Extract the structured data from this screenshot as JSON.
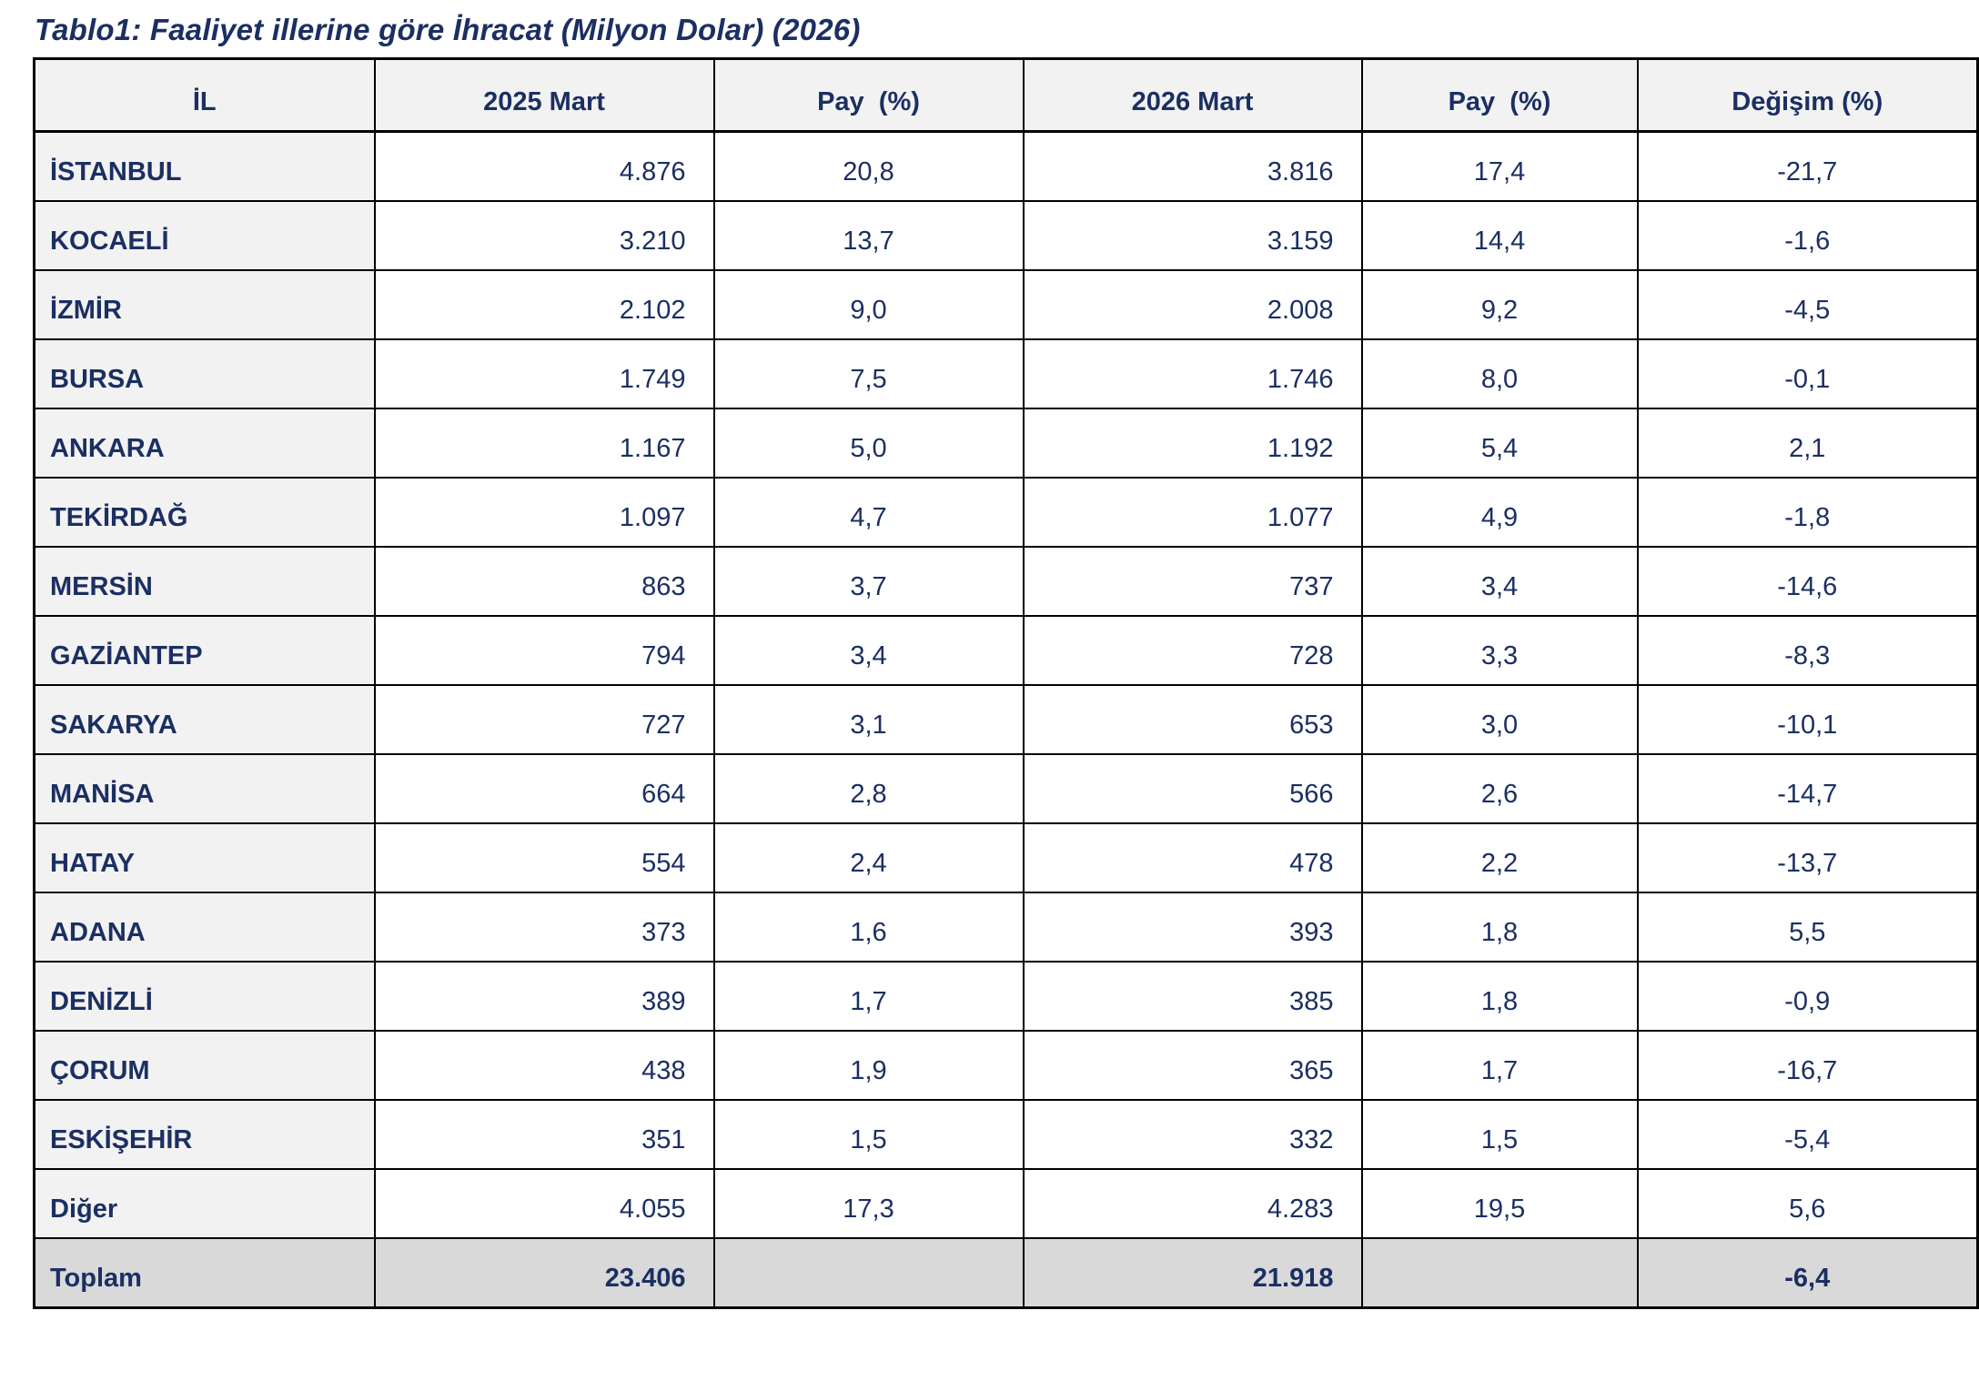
{
  "title": "Tablo1: Faaliyet illerine göre İhracat (Milyon Dolar) (2026)",
  "colors": {
    "text_navy": "#1b2f62",
    "header_bg": "#f2f2f2",
    "first_col_bg": "#f2f2f2",
    "total_row_bg": "#d9d9d9",
    "border": "#000000"
  },
  "table": {
    "columns": [
      "İL",
      "2025 Mart",
      "Pay  (%)",
      "2026 Mart",
      "Pay  (%)",
      "Değişim (%)"
    ],
    "rows": [
      {
        "il": "İSTANBUL",
        "v2025": "4.876",
        "pay2025": "20,8",
        "v2026": "3.816",
        "pay2026": "17,4",
        "change": "-21,7"
      },
      {
        "il": "KOCAELİ",
        "v2025": "3.210",
        "pay2025": "13,7",
        "v2026": "3.159",
        "pay2026": "14,4",
        "change": "-1,6"
      },
      {
        "il": "İZMİR",
        "v2025": "2.102",
        "pay2025": "9,0",
        "v2026": "2.008",
        "pay2026": "9,2",
        "change": "-4,5"
      },
      {
        "il": "BURSA",
        "v2025": "1.749",
        "pay2025": "7,5",
        "v2026": "1.746",
        "pay2026": "8,0",
        "change": "-0,1"
      },
      {
        "il": "ANKARA",
        "v2025": "1.167",
        "pay2025": "5,0",
        "v2026": "1.192",
        "pay2026": "5,4",
        "change": "2,1"
      },
      {
        "il": "TEKİRDAĞ",
        "v2025": "1.097",
        "pay2025": "4,7",
        "v2026": "1.077",
        "pay2026": "4,9",
        "change": "-1,8"
      },
      {
        "il": "MERSİN",
        "v2025": "863",
        "pay2025": "3,7",
        "v2026": "737",
        "pay2026": "3,4",
        "change": "-14,6"
      },
      {
        "il": "GAZİANTEP",
        "v2025": "794",
        "pay2025": "3,4",
        "v2026": "728",
        "pay2026": "3,3",
        "change": "-8,3"
      },
      {
        "il": "SAKARYA",
        "v2025": "727",
        "pay2025": "3,1",
        "v2026": "653",
        "pay2026": "3,0",
        "change": "-10,1"
      },
      {
        "il": "MANİSA",
        "v2025": "664",
        "pay2025": "2,8",
        "v2026": "566",
        "pay2026": "2,6",
        "change": "-14,7"
      },
      {
        "il": "HATAY",
        "v2025": "554",
        "pay2025": "2,4",
        "v2026": "478",
        "pay2026": "2,2",
        "change": "-13,7"
      },
      {
        "il": "ADANA",
        "v2025": "373",
        "pay2025": "1,6",
        "v2026": "393",
        "pay2026": "1,8",
        "change": "5,5"
      },
      {
        "il": "DENİZLİ",
        "v2025": "389",
        "pay2025": "1,7",
        "v2026": "385",
        "pay2026": "1,8",
        "change": "-0,9"
      },
      {
        "il": "ÇORUM",
        "v2025": "438",
        "pay2025": "1,9",
        "v2026": "365",
        "pay2026": "1,7",
        "change": "-16,7"
      },
      {
        "il": "ESKİŞEHİR",
        "v2025": "351",
        "pay2025": "1,5",
        "v2026": "332",
        "pay2026": "1,5",
        "change": "-5,4"
      },
      {
        "il": "Diğer",
        "v2025": "4.055",
        "pay2025": "17,3",
        "v2026": "4.283",
        "pay2026": "19,5",
        "change": "5,6"
      }
    ],
    "total": {
      "il": "Toplam",
      "v2025": "23.406",
      "pay2025": "",
      "v2026": "21.918",
      "pay2026": "",
      "change": "-6,4"
    }
  }
}
